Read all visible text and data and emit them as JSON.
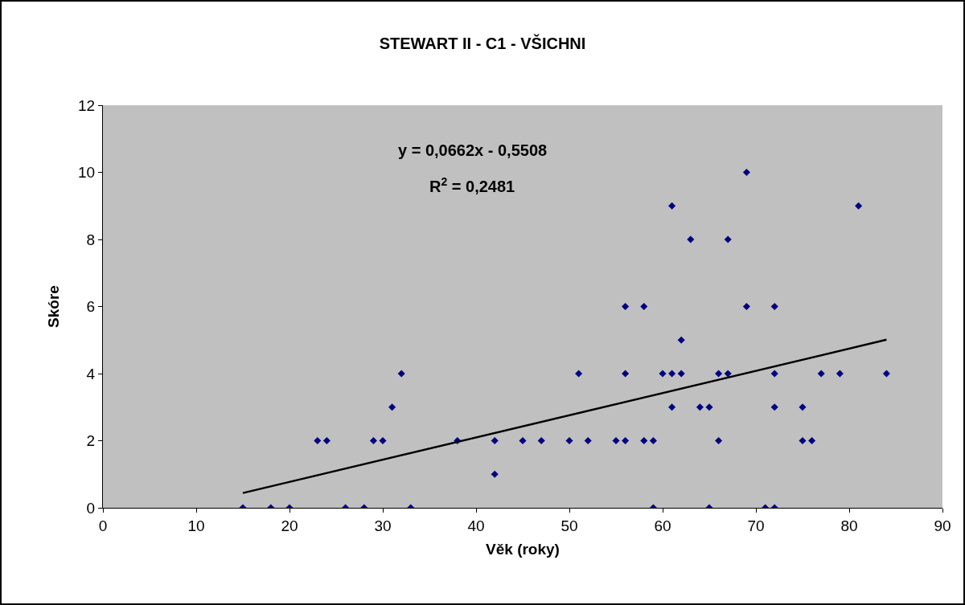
{
  "chart_data": {
    "type": "scatter",
    "title": "STEWART II - C1 - VŠICHNI",
    "xlabel": "Věk (roky)",
    "ylabel": "Skóre",
    "annotations": [
      "y = 0,0662x - 0,5508",
      "R$^{2}$ = 0,2481"
    ],
    "xlim": [
      0,
      90
    ],
    "xticks": [
      0,
      10,
      20,
      30,
      40,
      50,
      60,
      70,
      80,
      90
    ],
    "ylim": [
      0,
      12
    ],
    "yticks": [
      0,
      2,
      4,
      6,
      8,
      10,
      12
    ],
    "grid": false,
    "series": [
      {
        "marker": "diamond",
        "color": "#000080",
        "x": [
          15,
          18,
          20,
          23,
          24,
          26,
          28,
          29,
          30,
          31,
          32,
          33,
          38,
          42,
          42,
          45,
          47,
          50,
          51,
          52,
          55,
          56,
          56,
          56,
          58,
          58,
          59,
          59,
          60,
          61,
          61,
          61,
          62,
          62,
          63,
          64,
          65,
          65,
          66,
          66,
          67,
          67,
          69,
          69,
          71,
          72,
          72,
          72,
          72,
          75,
          75,
          76,
          77,
          79,
          81,
          84
        ],
        "values": [
          0,
          0,
          0,
          2,
          2,
          0,
          0,
          2,
          2,
          3,
          4,
          0,
          2,
          2,
          1,
          2,
          2,
          2,
          4,
          2,
          2,
          2,
          4,
          6,
          6,
          2,
          2,
          0,
          4,
          4,
          3,
          9,
          5,
          4,
          8,
          3,
          3,
          0,
          4,
          2,
          8,
          4,
          10,
          6,
          0,
          6,
          4,
          3,
          0,
          3,
          2,
          2,
          4,
          4,
          9,
          4
        ]
      },
      {
        "type": "line",
        "marker": "none",
        "color": "#000000",
        "line_style": "solid",
        "x": [
          15,
          84
        ],
        "values": [
          0.44,
          5.01
        ]
      }
    ]
  }
}
